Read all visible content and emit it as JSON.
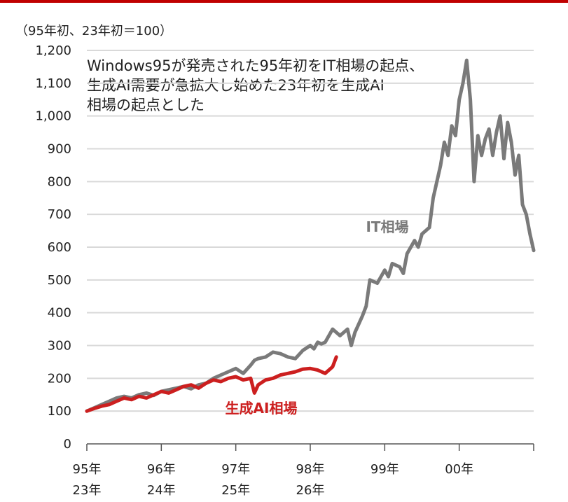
{
  "header": {
    "unit_label": "（95年初、23年初＝100）"
  },
  "annotation": {
    "lines": [
      "Windows95が発売された95年初をIT相場の起点、",
      "生成AI需要が急拡大し始めた23年初を生成AI",
      "相場の起点とした"
    ]
  },
  "colors": {
    "it": "#7a7a7a",
    "ai": "#cc1f1f",
    "grid": "#d9d9d9",
    "axis": "#555555",
    "rule": "#c00000"
  },
  "chart_data": {
    "type": "line",
    "title": "",
    "ylim": [
      0,
      1200
    ],
    "xlim": [
      0,
      6
    ],
    "yticks": [
      "0",
      "100",
      "200",
      "300",
      "400",
      "500",
      "600",
      "700",
      "800",
      "900",
      "1,000",
      "1,100",
      "1,200"
    ],
    "xticks": [
      {
        "top": "95年",
        "bottom": "23年"
      },
      {
        "top": "96年",
        "bottom": "24年"
      },
      {
        "top": "97年",
        "bottom": "25年"
      },
      {
        "top": "98年",
        "bottom": "26年"
      },
      {
        "top": "99年",
        "bottom": ""
      },
      {
        "top": "00年",
        "bottom": ""
      }
    ],
    "grid": true,
    "series": [
      {
        "name": "IT相場",
        "x": [
          0,
          0.1,
          0.2,
          0.3,
          0.4,
          0.5,
          0.6,
          0.7,
          0.8,
          0.9,
          1.0,
          1.1,
          1.2,
          1.3,
          1.4,
          1.5,
          1.6,
          1.7,
          1.8,
          1.9,
          2.0,
          2.1,
          2.2,
          2.25,
          2.3,
          2.4,
          2.5,
          2.6,
          2.7,
          2.8,
          2.9,
          3.0,
          3.05,
          3.1,
          3.15,
          3.2,
          3.3,
          3.4,
          3.5,
          3.55,
          3.6,
          3.7,
          3.75,
          3.8,
          3.9,
          4.0,
          4.05,
          4.1,
          4.2,
          4.25,
          4.3,
          4.4,
          4.45,
          4.5,
          4.6,
          4.65,
          4.7,
          4.75,
          4.8,
          4.85,
          4.9,
          4.95,
          5.0,
          5.05,
          5.1,
          5.15,
          5.2,
          5.25,
          5.3,
          5.35,
          5.4,
          5.45,
          5.5,
          5.55,
          5.6,
          5.65,
          5.7,
          5.75,
          5.8,
          5.85,
          5.9,
          5.95,
          6.0
        ],
        "values": [
          100,
          110,
          120,
          130,
          140,
          145,
          140,
          150,
          155,
          148,
          160,
          165,
          170,
          175,
          168,
          180,
          185,
          200,
          210,
          220,
          230,
          215,
          240,
          255,
          260,
          265,
          280,
          275,
          265,
          260,
          285,
          300,
          290,
          310,
          305,
          310,
          350,
          330,
          350,
          300,
          340,
          390,
          420,
          500,
          490,
          530,
          510,
          550,
          540,
          520,
          580,
          620,
          600,
          640,
          660,
          750,
          800,
          850,
          920,
          880,
          970,
          940,
          1050,
          1100,
          1170,
          1050,
          800,
          940,
          880,
          930,
          960,
          880,
          950,
          1000,
          870,
          980,
          920,
          820,
          880,
          730,
          700,
          640,
          590
        ]
      },
      {
        "name": "生成AI相場",
        "x": [
          0,
          0.1,
          0.2,
          0.3,
          0.4,
          0.5,
          0.6,
          0.7,
          0.8,
          0.9,
          1.0,
          1.1,
          1.2,
          1.3,
          1.4,
          1.5,
          1.6,
          1.7,
          1.8,
          1.9,
          2.0,
          2.1,
          2.2,
          2.25,
          2.3,
          2.4,
          2.5,
          2.6,
          2.7,
          2.8,
          2.9,
          3.0,
          3.1,
          3.2,
          3.3,
          3.35
        ],
        "values": [
          100,
          108,
          115,
          120,
          130,
          140,
          135,
          145,
          140,
          150,
          160,
          155,
          165,
          175,
          180,
          170,
          185,
          195,
          190,
          200,
          205,
          195,
          200,
          155,
          180,
          195,
          200,
          210,
          215,
          220,
          228,
          230,
          225,
          215,
          235,
          265
        ]
      }
    ]
  }
}
